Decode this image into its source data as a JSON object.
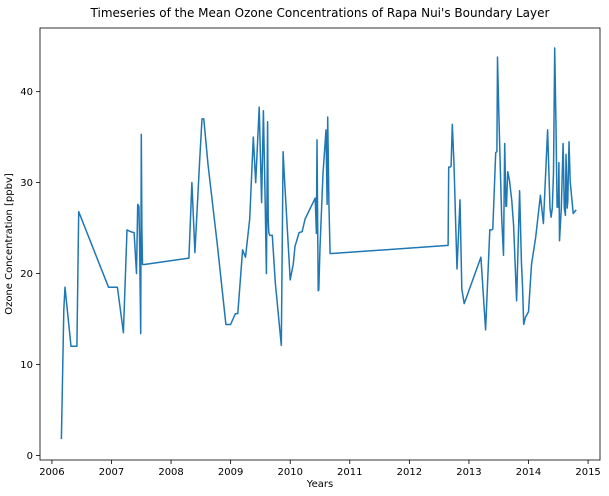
{
  "chart_data": {
    "type": "line",
    "title": "Timeseries of the Mean Ozone Concentrations of Rapa Nui's Boundary Layer",
    "xlabel": "Years",
    "ylabel": "Ozone Concentration [ppbv]",
    "xlim": [
      2005.8,
      2015.2
    ],
    "ylim": [
      -0.5,
      47.0
    ],
    "xticks": [
      2006,
      2007,
      2008,
      2009,
      2010,
      2011,
      2012,
      2013,
      2014,
      2015
    ],
    "xtick_labels": [
      "2006",
      "2007",
      "2008",
      "2009",
      "2010",
      "2011",
      "2012",
      "2013",
      "2014",
      "2015"
    ],
    "yticks": [
      0,
      10,
      20,
      30,
      40
    ],
    "ytick_labels": [
      "0",
      "10",
      "20",
      "30",
      "40"
    ],
    "grid": false,
    "legend": "none",
    "series": [
      {
        "color": "#1f77b4",
        "x": [
          2006.16,
          2006.2,
          2006.22,
          2006.32,
          2006.42,
          2006.45,
          2006.95,
          2007.1,
          2007.2,
          2007.26,
          2007.32,
          2007.38,
          2007.42,
          2007.44,
          2007.46,
          2007.47,
          2007.49,
          2007.5,
          2007.51,
          2007.52,
          2007.53,
          2007.55,
          2008.3,
          2008.35,
          2008.4,
          2008.48,
          2008.52,
          2008.55,
          2008.62,
          2008.78,
          2008.92,
          2009.0,
          2009.08,
          2009.12,
          2009.2,
          2009.25,
          2009.32,
          2009.38,
          2009.42,
          2009.48,
          2009.52,
          2009.55,
          2009.58,
          2009.6,
          2009.62,
          2009.63,
          2009.64,
          2009.65,
          2009.66,
          2009.68,
          2009.7,
          2009.75,
          2009.85,
          2009.88,
          2009.9,
          2010.0,
          2010.05,
          2010.08,
          2010.15,
          2010.2,
          2010.25,
          2010.42,
          2010.44,
          2010.45,
          2010.47,
          2010.48,
          2010.5,
          2010.55,
          2010.6,
          2010.62,
          2010.63,
          2010.65,
          2010.67,
          2010.7,
          2012.65,
          2012.66,
          2012.68,
          2012.7,
          2012.72,
          2012.75,
          2012.78,
          2012.8,
          2012.85,
          2012.88,
          2012.92,
          2013.2,
          2013.28,
          2013.35,
          2013.38,
          2013.4,
          2013.45,
          2013.47,
          2013.48,
          2013.5,
          2013.52,
          2013.55,
          2013.58,
          2013.6,
          2013.62,
          2013.63,
          2013.65,
          2013.68,
          2013.72,
          2013.75,
          2013.8,
          2013.85,
          2013.88,
          2013.9,
          2013.92,
          2013.95,
          2014.0,
          2014.05,
          2014.12,
          2014.2,
          2014.25,
          2014.32,
          2014.36,
          2014.38,
          2014.4,
          2014.42,
          2014.44,
          2014.46,
          2014.48,
          2014.49,
          2014.5,
          2014.51,
          2014.52,
          2014.55,
          2014.58,
          2014.6,
          2014.62,
          2014.63,
          2014.64,
          2014.65,
          2014.66,
          2014.68,
          2014.7,
          2014.75,
          2014.8
        ],
        "y": [
          1.8,
          16.0,
          18.5,
          12.0,
          12.0,
          26.8,
          18.5,
          18.5,
          13.5,
          24.8,
          24.6,
          24.5,
          20.0,
          27.6,
          27.4,
          24.0,
          13.4,
          35.3,
          25.0,
          21.0,
          21.0,
          21.0,
          21.7,
          30.0,
          22.3,
          32.5,
          37.0,
          37.0,
          32.0,
          23.0,
          14.4,
          14.4,
          15.6,
          15.6,
          22.6,
          21.8,
          26.0,
          35.0,
          30.0,
          38.3,
          27.8,
          37.9,
          27.7,
          20.0,
          36.7,
          26.0,
          24.5,
          24.3,
          24.2,
          24.2,
          24.2,
          19.0,
          12.1,
          33.4,
          30.8,
          19.3,
          21.0,
          23.0,
          24.5,
          24.6,
          26.0,
          28.3,
          24.4,
          34.7,
          18.1,
          18.2,
          22.9,
          31.0,
          35.8,
          27.6,
          37.2,
          27.8,
          22.2,
          22.2,
          23.1,
          31.7,
          31.7,
          31.8,
          36.4,
          32.0,
          25.0,
          20.5,
          28.1,
          18.3,
          16.7,
          21.8,
          13.8,
          24.8,
          24.8,
          24.9,
          33.3,
          33.4,
          43.8,
          38.2,
          33.2,
          26.1,
          22.0,
          34.3,
          27.4,
          27.4,
          31.2,
          30.3,
          28.0,
          25.3,
          17.0,
          29.1,
          21.3,
          18.4,
          14.4,
          15.2,
          15.8,
          21.0,
          24.0,
          28.6,
          25.5,
          35.8,
          27.2,
          26.2,
          27.2,
          31.1,
          44.8,
          36.9,
          27.3,
          27.5,
          27.3,
          32.2,
          23.6,
          27.2,
          34.3,
          27.2,
          26.4,
          33.1,
          30.5,
          27.2,
          28.0,
          34.5,
          30.1,
          26.6,
          27.0
        ]
      }
    ]
  }
}
